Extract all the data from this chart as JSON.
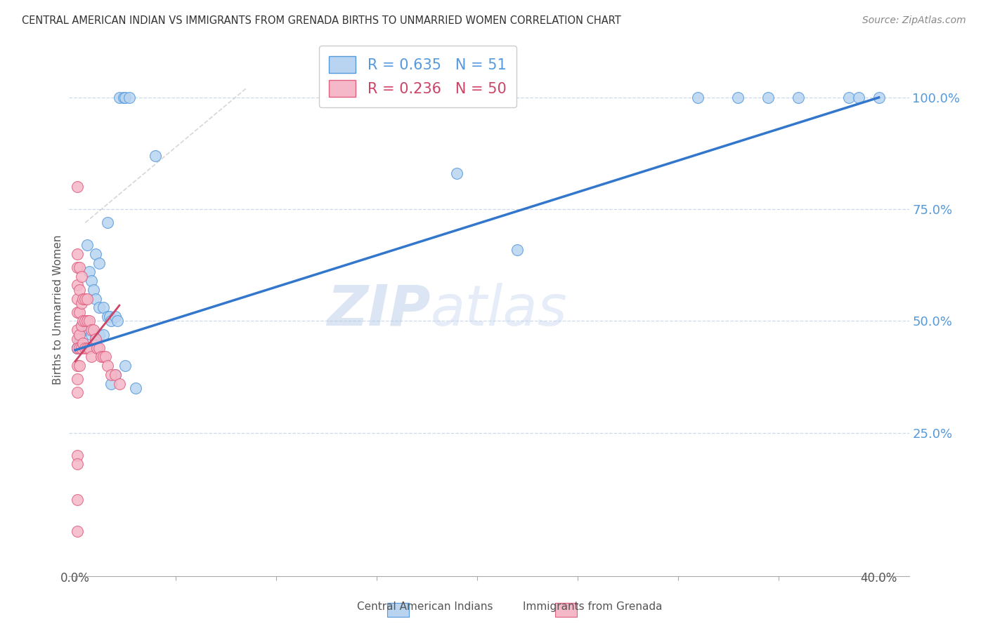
{
  "title": "CENTRAL AMERICAN INDIAN VS IMMIGRANTS FROM GRENADA BIRTHS TO UNMARRIED WOMEN CORRELATION CHART",
  "source": "Source: ZipAtlas.com",
  "ylabel": "Births to Unmarried Women",
  "ytick_vals": [
    1.0,
    0.75,
    0.5,
    0.25
  ],
  "ytick_labels": [
    "100.0%",
    "75.0%",
    "50.0%",
    "25.0%"
  ],
  "xlim_min": -0.003,
  "xlim_max": 0.415,
  "ylim_min": -0.07,
  "ylim_max": 1.12,
  "color_blue_fill": "#b8d4f0",
  "color_blue_edge": "#5599dd",
  "color_pink_fill": "#f5b8c8",
  "color_pink_edge": "#e06080",
  "color_trendline_blue": "#3377cc",
  "color_trendline_pink": "#cc4466",
  "color_gray_dashed": "#cccccc",
  "color_grid": "#c0d0e8",
  "color_ytick_labels": "#5599dd",
  "color_xtick_labels": "#555555",
  "watermark_text": "ZIPatlas",
  "watermark_color": "#d0e4f8",
  "legend_r1": "R = 0.635",
  "legend_n1": "N = 51",
  "legend_r2": "R = 0.236",
  "legend_n2": "N = 50",
  "blue_x": [
    0.022,
    0.024,
    0.025,
    0.027,
    0.04,
    0.016,
    0.006,
    0.01,
    0.012,
    0.007,
    0.008,
    0.009,
    0.01,
    0.012,
    0.014,
    0.016,
    0.017,
    0.018,
    0.02,
    0.021,
    0.003,
    0.004,
    0.005,
    0.006,
    0.007,
    0.008,
    0.01,
    0.012,
    0.014,
    0.002,
    0.002,
    0.003,
    0.004,
    0.001,
    0.001,
    0.001,
    0.001,
    0.001,
    0.19,
    0.22,
    0.31,
    0.33,
    0.345,
    0.36,
    0.385,
    0.39,
    0.4,
    0.02,
    0.025,
    0.018,
    0.03
  ],
  "blue_y": [
    1.0,
    1.0,
    1.0,
    1.0,
    0.87,
    0.72,
    0.67,
    0.65,
    0.63,
    0.61,
    0.59,
    0.57,
    0.55,
    0.53,
    0.53,
    0.51,
    0.51,
    0.5,
    0.51,
    0.5,
    0.49,
    0.48,
    0.49,
    0.48,
    0.48,
    0.47,
    0.47,
    0.47,
    0.47,
    0.46,
    0.45,
    0.45,
    0.45,
    0.44,
    0.44,
    0.44,
    0.44,
    0.44,
    0.83,
    0.66,
    1.0,
    1.0,
    1.0,
    1.0,
    1.0,
    1.0,
    1.0,
    0.38,
    0.4,
    0.36,
    0.35
  ],
  "pink_x": [
    0.001,
    0.001,
    0.001,
    0.001,
    0.001,
    0.001,
    0.001,
    0.001,
    0.001,
    0.001,
    0.001,
    0.001,
    0.002,
    0.002,
    0.002,
    0.002,
    0.002,
    0.002,
    0.003,
    0.003,
    0.003,
    0.003,
    0.004,
    0.004,
    0.004,
    0.005,
    0.005,
    0.005,
    0.006,
    0.006,
    0.006,
    0.007,
    0.007,
    0.008,
    0.008,
    0.009,
    0.01,
    0.011,
    0.012,
    0.013,
    0.014,
    0.015,
    0.016,
    0.018,
    0.02,
    0.022,
    0.001,
    0.001,
    0.001,
    0.001
  ],
  "pink_y": [
    0.8,
    0.65,
    0.62,
    0.58,
    0.55,
    0.52,
    0.48,
    0.46,
    0.44,
    0.4,
    0.37,
    0.34,
    0.62,
    0.57,
    0.52,
    0.47,
    0.44,
    0.4,
    0.6,
    0.54,
    0.49,
    0.44,
    0.55,
    0.5,
    0.45,
    0.55,
    0.5,
    0.44,
    0.55,
    0.5,
    0.44,
    0.5,
    0.44,
    0.48,
    0.42,
    0.48,
    0.46,
    0.44,
    0.44,
    0.42,
    0.42,
    0.42,
    0.4,
    0.38,
    0.38,
    0.36,
    0.2,
    0.18,
    0.1,
    0.03
  ],
  "blue_line_x": [
    0.0,
    0.4
  ],
  "blue_line_y": [
    0.435,
    1.0
  ],
  "pink_line_x": [
    0.0,
    0.022
  ],
  "pink_line_y": [
    0.41,
    0.535
  ],
  "gray_line_x": [
    0.005,
    0.085
  ],
  "gray_line_y": [
    0.72,
    1.02
  ]
}
